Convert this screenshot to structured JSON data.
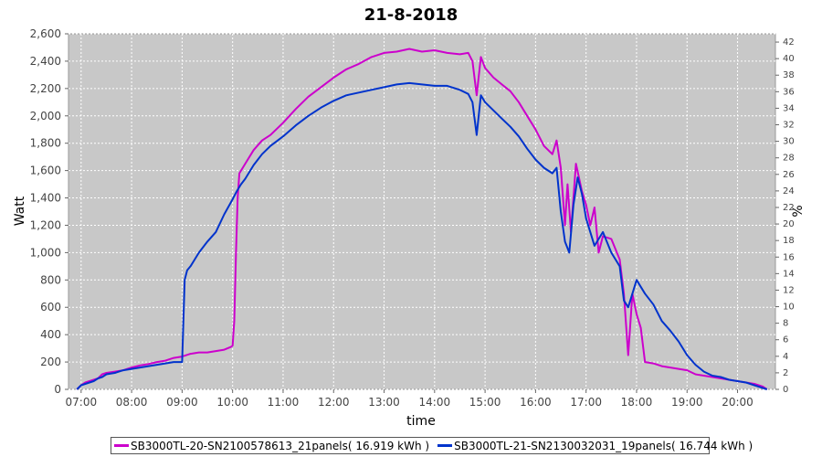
{
  "chart_data": {
    "type": "line",
    "title": "21-8-2018",
    "xlabel": "time",
    "ylabel": "Watt",
    "y2label": "%",
    "x_ticks": [
      "07:00",
      "08:00",
      "09:00",
      "10:00",
      "11:00",
      "12:00",
      "13:00",
      "14:00",
      "15:00",
      "16:00",
      "17:00",
      "18:00",
      "19:00",
      "20:00"
    ],
    "x_range": [
      "06:45",
      "20:45"
    ],
    "y_ticks": [
      "0",
      "200",
      "400",
      "600",
      "800",
      "1,000",
      "1,200",
      "1,400",
      "1,600",
      "1,800",
      "2,000",
      "2,200",
      "2,400",
      "2,600"
    ],
    "ylim": [
      0,
      2600
    ],
    "y2_ticks": [
      "0",
      "2",
      "4",
      "6",
      "8",
      "10",
      "12",
      "14",
      "16",
      "18",
      "20",
      "22",
      "24",
      "26",
      "28",
      "30",
      "32",
      "34",
      "36",
      "38",
      "40",
      "42"
    ],
    "y2lim": [
      0,
      43
    ],
    "grid": true,
    "legend_position": "bottom",
    "colors": {
      "plot_background": "#c8c8c8",
      "grid": "#ffffff",
      "series1": "#cc00cc",
      "series2": "#0033cc"
    },
    "series": [
      {
        "name": "SB3000TL-20-SN2100578613_21panels( 16.919 kWh )",
        "color": "#cc00cc",
        "points": [
          [
            "06:55",
            0
          ],
          [
            "07:00",
            30
          ],
          [
            "07:05",
            50
          ],
          [
            "07:10",
            60
          ],
          [
            "07:15",
            70
          ],
          [
            "07:20",
            80
          ],
          [
            "07:25",
            110
          ],
          [
            "07:30",
            120
          ],
          [
            "07:40",
            130
          ],
          [
            "07:50",
            140
          ],
          [
            "08:00",
            160
          ],
          [
            "08:10",
            175
          ],
          [
            "08:20",
            185
          ],
          [
            "08:30",
            200
          ],
          [
            "08:40",
            210
          ],
          [
            "08:50",
            230
          ],
          [
            "09:00",
            240
          ],
          [
            "09:10",
            260
          ],
          [
            "09:20",
            270
          ],
          [
            "09:30",
            270
          ],
          [
            "09:40",
            280
          ],
          [
            "09:50",
            290
          ],
          [
            "09:58",
            310
          ],
          [
            "10:00",
            320
          ],
          [
            "10:02",
            500
          ],
          [
            "10:04",
            1000
          ],
          [
            "10:06",
            1400
          ],
          [
            "10:08",
            1580
          ],
          [
            "10:15",
            1650
          ],
          [
            "10:25",
            1750
          ],
          [
            "10:35",
            1820
          ],
          [
            "10:45",
            1860
          ],
          [
            "11:00",
            1950
          ],
          [
            "11:15",
            2050
          ],
          [
            "11:30",
            2140
          ],
          [
            "11:45",
            2210
          ],
          [
            "12:00",
            2280
          ],
          [
            "12:15",
            2340
          ],
          [
            "12:30",
            2380
          ],
          [
            "12:45",
            2430
          ],
          [
            "13:00",
            2460
          ],
          [
            "13:15",
            2470
          ],
          [
            "13:30",
            2490
          ],
          [
            "13:45",
            2470
          ],
          [
            "14:00",
            2480
          ],
          [
            "14:15",
            2460
          ],
          [
            "14:30",
            2450
          ],
          [
            "14:40",
            2460
          ],
          [
            "14:45",
            2400
          ],
          [
            "14:50",
            2150
          ],
          [
            "14:55",
            2430
          ],
          [
            "15:00",
            2350
          ],
          [
            "15:10",
            2280
          ],
          [
            "15:20",
            2230
          ],
          [
            "15:30",
            2180
          ],
          [
            "15:40",
            2100
          ],
          [
            "15:50",
            2000
          ],
          [
            "16:00",
            1900
          ],
          [
            "16:10",
            1780
          ],
          [
            "16:20",
            1720
          ],
          [
            "16:25",
            1820
          ],
          [
            "16:30",
            1620
          ],
          [
            "16:35",
            1200
          ],
          [
            "16:38",
            1500
          ],
          [
            "16:42",
            1150
          ],
          [
            "16:48",
            1650
          ],
          [
            "16:55",
            1450
          ],
          [
            "17:00",
            1350
          ],
          [
            "17:05",
            1200
          ],
          [
            "17:10",
            1330
          ],
          [
            "17:15",
            1000
          ],
          [
            "17:20",
            1120
          ],
          [
            "17:30",
            1100
          ],
          [
            "17:40",
            950
          ],
          [
            "17:45",
            700
          ],
          [
            "17:50",
            250
          ],
          [
            "17:55",
            700
          ],
          [
            "18:00",
            550
          ],
          [
            "18:05",
            450
          ],
          [
            "18:10",
            200
          ],
          [
            "18:20",
            190
          ],
          [
            "18:30",
            170
          ],
          [
            "18:40",
            160
          ],
          [
            "18:50",
            150
          ],
          [
            "19:00",
            140
          ],
          [
            "19:10",
            110
          ],
          [
            "19:20",
            100
          ],
          [
            "19:30",
            90
          ],
          [
            "19:40",
            80
          ],
          [
            "19:50",
            70
          ],
          [
            "20:00",
            60
          ],
          [
            "20:10",
            50
          ],
          [
            "20:20",
            40
          ],
          [
            "20:30",
            20
          ],
          [
            "20:35",
            0
          ]
        ]
      },
      {
        "name": "SB3000TL-21-SN2130032031_19panels( 16.744 kWh )",
        "color": "#0033cc",
        "points": [
          [
            "06:55",
            0
          ],
          [
            "07:00",
            30
          ],
          [
            "07:05",
            40
          ],
          [
            "07:10",
            50
          ],
          [
            "07:15",
            60
          ],
          [
            "07:20",
            80
          ],
          [
            "07:25",
            90
          ],
          [
            "07:30",
            110
          ],
          [
            "07:40",
            120
          ],
          [
            "07:50",
            140
          ],
          [
            "08:00",
            150
          ],
          [
            "08:10",
            160
          ],
          [
            "08:20",
            170
          ],
          [
            "08:30",
            180
          ],
          [
            "08:40",
            190
          ],
          [
            "08:50",
            200
          ],
          [
            "09:00",
            200
          ],
          [
            "09:03",
            800
          ],
          [
            "09:06",
            870
          ],
          [
            "09:10",
            900
          ],
          [
            "09:15",
            950
          ],
          [
            "09:20",
            1000
          ],
          [
            "09:30",
            1080
          ],
          [
            "09:40",
            1150
          ],
          [
            "09:50",
            1280
          ],
          [
            "10:00",
            1390
          ],
          [
            "10:05",
            1450
          ],
          [
            "10:10",
            1500
          ],
          [
            "10:15",
            1540
          ],
          [
            "10:25",
            1640
          ],
          [
            "10:35",
            1720
          ],
          [
            "10:45",
            1780
          ],
          [
            "11:00",
            1850
          ],
          [
            "11:15",
            1930
          ],
          [
            "11:30",
            2000
          ],
          [
            "11:45",
            2060
          ],
          [
            "12:00",
            2110
          ],
          [
            "12:15",
            2150
          ],
          [
            "12:30",
            2170
          ],
          [
            "12:45",
            2190
          ],
          [
            "13:00",
            2210
          ],
          [
            "13:15",
            2230
          ],
          [
            "13:30",
            2240
          ],
          [
            "13:45",
            2230
          ],
          [
            "14:00",
            2220
          ],
          [
            "14:15",
            2220
          ],
          [
            "14:30",
            2190
          ],
          [
            "14:40",
            2160
          ],
          [
            "14:45",
            2100
          ],
          [
            "14:50",
            1860
          ],
          [
            "14:55",
            2150
          ],
          [
            "15:00",
            2100
          ],
          [
            "15:10",
            2040
          ],
          [
            "15:20",
            1980
          ],
          [
            "15:30",
            1920
          ],
          [
            "15:40",
            1850
          ],
          [
            "15:50",
            1760
          ],
          [
            "16:00",
            1680
          ],
          [
            "16:10",
            1620
          ],
          [
            "16:20",
            1580
          ],
          [
            "16:25",
            1620
          ],
          [
            "16:30",
            1300
          ],
          [
            "16:35",
            1080
          ],
          [
            "16:40",
            1000
          ],
          [
            "16:45",
            1350
          ],
          [
            "16:50",
            1550
          ],
          [
            "16:55",
            1430
          ],
          [
            "17:00",
            1250
          ],
          [
            "17:05",
            1150
          ],
          [
            "17:10",
            1050
          ],
          [
            "17:15",
            1100
          ],
          [
            "17:20",
            1150
          ],
          [
            "17:30",
            1000
          ],
          [
            "17:40",
            900
          ],
          [
            "17:45",
            650
          ],
          [
            "17:50",
            600
          ],
          [
            "17:55",
            700
          ],
          [
            "18:00",
            800
          ],
          [
            "18:10",
            700
          ],
          [
            "18:20",
            620
          ],
          [
            "18:30",
            500
          ],
          [
            "18:40",
            430
          ],
          [
            "18:50",
            350
          ],
          [
            "19:00",
            250
          ],
          [
            "19:10",
            180
          ],
          [
            "19:20",
            130
          ],
          [
            "19:30",
            100
          ],
          [
            "19:40",
            90
          ],
          [
            "19:50",
            70
          ],
          [
            "20:00",
            60
          ],
          [
            "20:10",
            50
          ],
          [
            "20:20",
            30
          ],
          [
            "20:30",
            10
          ],
          [
            "20:35",
            0
          ]
        ]
      }
    ]
  }
}
